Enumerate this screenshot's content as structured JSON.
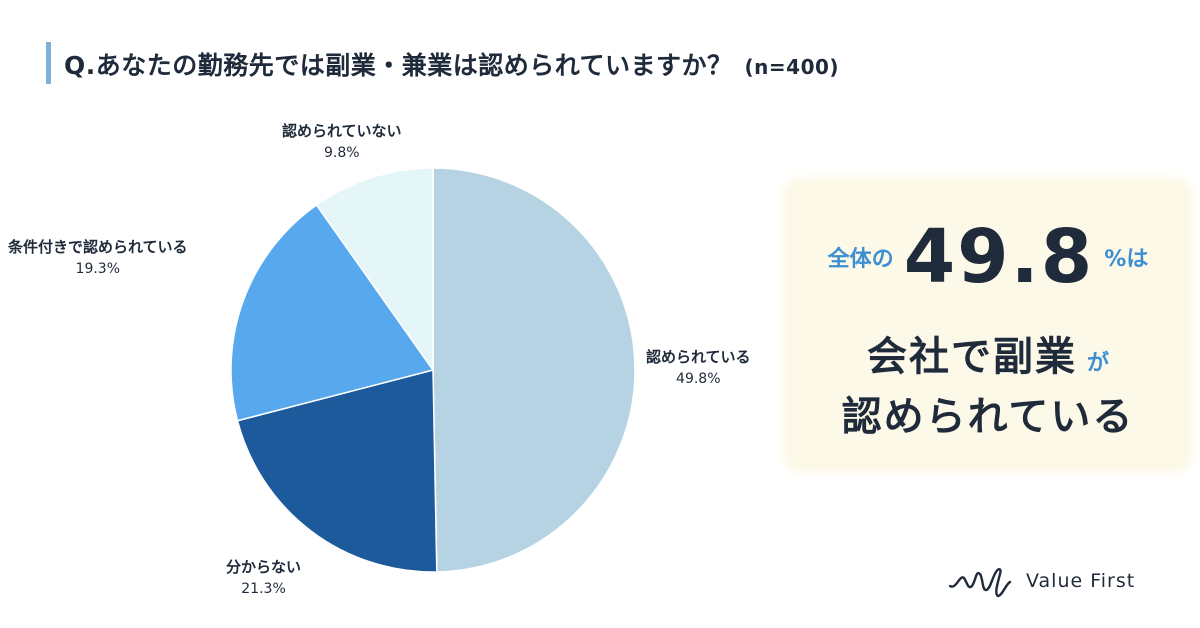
{
  "title": {
    "question": "Q.あなたの勤務先では副業・兼業は認められていますか？",
    "sample": "(n=400)"
  },
  "chart_data": {
    "type": "pie",
    "unit": "%",
    "slices": [
      {
        "label": "認められている",
        "value": 49.8,
        "value_label": "49.8%",
        "color": "#b6d3e4"
      },
      {
        "label": "分からない",
        "value": 21.3,
        "value_label": "21.3%",
        "color": "#1c5a9b"
      },
      {
        "label": "条件付きで認められている",
        "value": 19.3,
        "value_label": "19.3%",
        "color": "#58a8ee"
      },
      {
        "label": "認められていない",
        "value": 9.8,
        "value_label": "9.8%",
        "color": "#e5f6f9"
      }
    ],
    "start_angle": "12 o'clock",
    "direction": "clockwise"
  },
  "callout": {
    "prefix": "全体の",
    "big_value": "49.8",
    "suffix": "%は",
    "line2": "会社で副業",
    "line2_particle": "が",
    "line3": "認められている"
  },
  "brand": {
    "name": "Value First"
  }
}
